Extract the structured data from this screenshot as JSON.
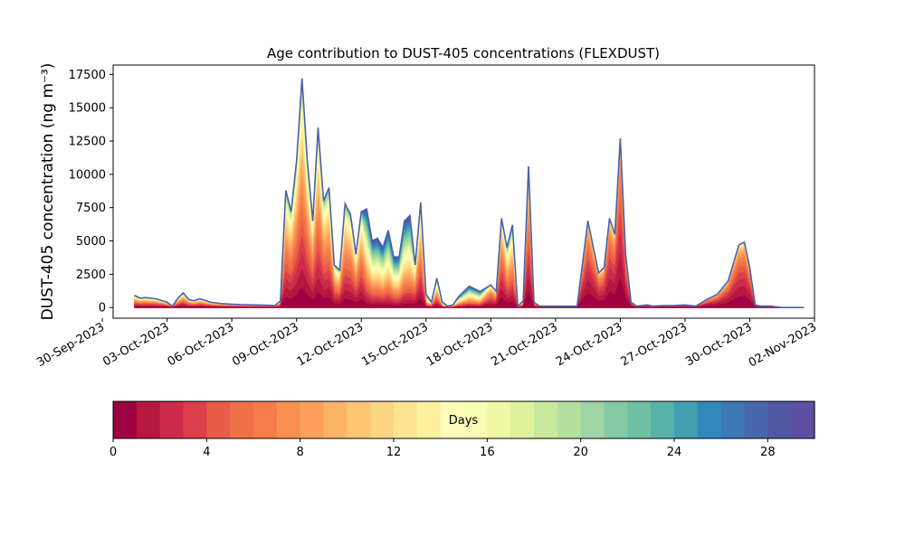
{
  "chart_data": {
    "type": "area",
    "title": "Age contribution to DUST-405 concentrations (FLEXDUST)",
    "xlabel": "",
    "ylabel": "DUST-405 concentration (ng m⁻³)",
    "xlim": [
      "2023-09-30T12:00",
      "2023-11-02T00:00"
    ],
    "ylim": [
      -800,
      18200
    ],
    "yticks": [
      0,
      2500,
      5000,
      7500,
      10000,
      12500,
      15000,
      17500
    ],
    "ytick_labels": [
      "0",
      "2500",
      "5000",
      "7500",
      "10000",
      "12500",
      "15000",
      "17500"
    ],
    "xticks": [
      "2023-09-30",
      "2023-10-03",
      "2023-10-06",
      "2023-10-09",
      "2023-10-12",
      "2023-10-15",
      "2023-10-18",
      "2023-10-21",
      "2023-10-24",
      "2023-10-27",
      "2023-10-30",
      "2023-11-02"
    ],
    "xtick_labels": [
      "30-Sep-2023",
      "03-Oct-2023",
      "06-Oct-2023",
      "09-Oct-2023",
      "12-Oct-2023",
      "15-Oct-2023",
      "18-Oct-2023",
      "21-Oct-2023",
      "24-Oct-2023",
      "27-Oct-2023",
      "30-Oct-2023",
      "02-Nov-2023"
    ],
    "series_note": "stacked contributions by particle age, 0-30 days in 1-day bins",
    "total": {
      "x": [
        "2023-10-01T12:00",
        "2023-10-01T18:00",
        "2023-10-02T00:00",
        "2023-10-02T12:00",
        "2023-10-03T00:00",
        "2023-10-03T06:00",
        "2023-10-03T12:00",
        "2023-10-03T18:00",
        "2023-10-04T00:00",
        "2023-10-04T06:00",
        "2023-10-04T12:00",
        "2023-10-04T18:00",
        "2023-10-05T00:00",
        "2023-10-05T12:00",
        "2023-10-06T00:00",
        "2023-10-06T12:00",
        "2023-10-07T00:00",
        "2023-10-07T12:00",
        "2023-10-08T00:00",
        "2023-10-08T06:00",
        "2023-10-08T12:00",
        "2023-10-08T18:00",
        "2023-10-09T00:00",
        "2023-10-09T06:00",
        "2023-10-09T12:00",
        "2023-10-09T18:00",
        "2023-10-10T00:00",
        "2023-10-10T06:00",
        "2023-10-10T12:00",
        "2023-10-10T18:00",
        "2023-10-11T00:00",
        "2023-10-11T06:00",
        "2023-10-11T12:00",
        "2023-10-11T18:00",
        "2023-10-12T00:00",
        "2023-10-12T06:00",
        "2023-10-12T12:00",
        "2023-10-12T18:00",
        "2023-10-13T00:00",
        "2023-10-13T06:00",
        "2023-10-13T12:00",
        "2023-10-13T18:00",
        "2023-10-14T00:00",
        "2023-10-14T06:00",
        "2023-10-14T12:00",
        "2023-10-14T18:00",
        "2023-10-15T00:00",
        "2023-10-15T06:00",
        "2023-10-15T12:00",
        "2023-10-15T18:00",
        "2023-10-16T00:00",
        "2023-10-16T06:00",
        "2023-10-16T12:00",
        "2023-10-17T00:00",
        "2023-10-17T12:00",
        "2023-10-18T00:00",
        "2023-10-18T06:00",
        "2023-10-18T12:00",
        "2023-10-18T18:00",
        "2023-10-19T00:00",
        "2023-10-19T06:00",
        "2023-10-19T12:00",
        "2023-10-19T18:00",
        "2023-10-20T00:00",
        "2023-10-20T06:00",
        "2023-10-20T12:00",
        "2023-10-20T18:00",
        "2023-10-21T00:00",
        "2023-10-21T12:00",
        "2023-10-22T00:00",
        "2023-10-22T12:00",
        "2023-10-23T00:00",
        "2023-10-23T06:00",
        "2023-10-23T12:00",
        "2023-10-23T18:00",
        "2023-10-24T00:00",
        "2023-10-24T06:00",
        "2023-10-24T12:00",
        "2023-10-24T18:00",
        "2023-10-25T00:00",
        "2023-10-25T06:00",
        "2023-10-25T12:00",
        "2023-10-26T00:00",
        "2023-10-26T12:00",
        "2023-10-27T00:00",
        "2023-10-27T12:00",
        "2023-10-28T00:00",
        "2023-10-28T12:00",
        "2023-10-29T00:00",
        "2023-10-29T12:00",
        "2023-10-29T18:00",
        "2023-10-30T00:00",
        "2023-10-30T06:00",
        "2023-10-30T12:00",
        "2023-10-30T18:00",
        "2023-10-31T00:00",
        "2023-10-31T06:00",
        "2023-10-31T12:00",
        "2023-10-31T18:00",
        "2023-11-01T00:00",
        "2023-11-01T12:00"
      ],
      "y": [
        900,
        700,
        750,
        650,
        400,
        100,
        700,
        1100,
        600,
        500,
        650,
        550,
        400,
        300,
        250,
        220,
        200,
        180,
        150,
        500,
        8800,
        7200,
        11000,
        17200,
        11000,
        6500,
        13500,
        8000,
        9000,
        3200,
        2800,
        7800,
        7000,
        4000,
        7200,
        7400,
        5000,
        5200,
        4500,
        5800,
        3800,
        3800,
        6500,
        6900,
        3200,
        7900,
        1000,
        400,
        2200,
        400,
        100,
        200,
        800,
        1600,
        1200,
        1700,
        1200,
        6700,
        4500,
        6200,
        100,
        500,
        10600,
        400,
        100,
        100,
        100,
        100,
        100,
        100,
        6500,
        2600,
        3000,
        6700,
        5500,
        12700,
        4000,
        400,
        100,
        150,
        200,
        100,
        150,
        150,
        200,
        100,
        600,
        1000,
        2000,
        4700,
        4900,
        3000,
        200,
        100,
        100,
        100,
        50,
        0,
        0,
        0,
        0
      ],
      "note": "readings: at ~2023-10-30 one point at 1000 and another at 2000"
    },
    "colorbar": {
      "label": "Days",
      "range": [
        0,
        30
      ],
      "ticks": [
        0,
        4,
        8,
        12,
        16,
        20,
        24,
        28
      ],
      "tick_labels": [
        "0",
        "4",
        "8",
        "12",
        "16",
        "20",
        "24",
        "28"
      ],
      "colors": [
        "#9e0142",
        "#b5173f",
        "#cc2a49",
        "#dc3e4c",
        "#e95c47",
        "#f07047",
        "#f67c4a",
        "#fa8f52",
        "#fda05e",
        "#fdb366",
        "#fec574",
        "#fdd683",
        "#fee491",
        "#fff0a0",
        "#fffbb8",
        "#f7fcb3",
        "#eef8a5",
        "#dff29b",
        "#c9e99d",
        "#b5df9e",
        "#9fd5a4",
        "#84cba5",
        "#70c0a4",
        "#58b2aa",
        "#43a0b1",
        "#3288bd",
        "#3d77b6",
        "#4866ad",
        "#5357a3",
        "#5e4fa2"
      ]
    }
  }
}
